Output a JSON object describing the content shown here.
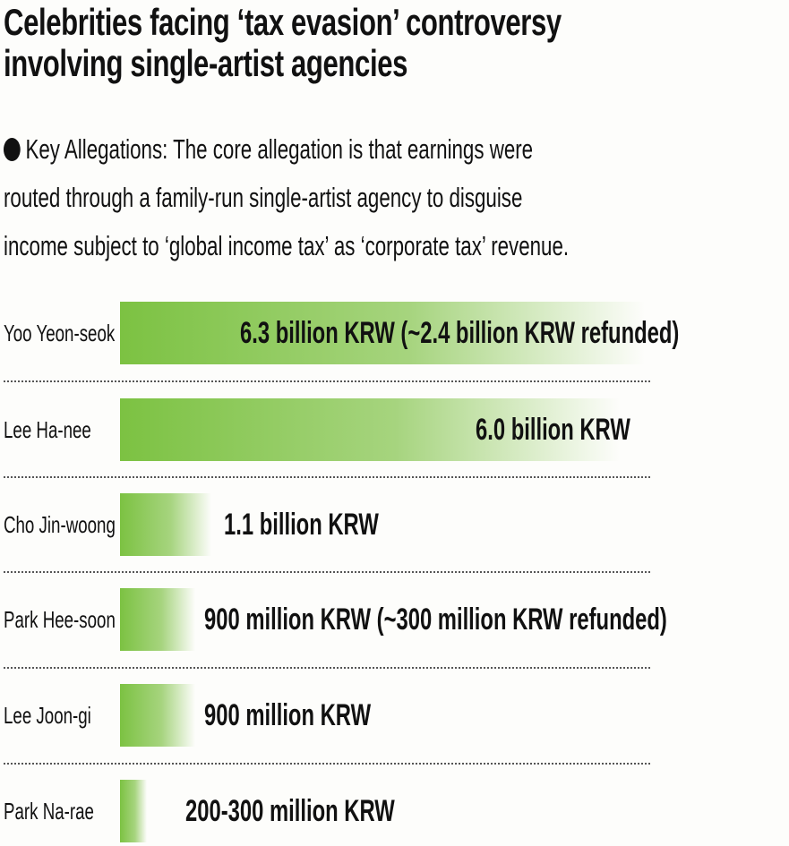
{
  "title_lines": [
    "Celebrities facing ‘tax evasion’ controversy",
    "involving single-artist agencies"
  ],
  "description_lines": [
    "Key Allegations: The core allegation is that earnings were",
    "routed through a family-run single-artist agency to disguise",
    "income subject to ‘global income tax’ as ‘corporate tax’ revenue."
  ],
  "bar_color": "#7cc242",
  "chart_data": {
    "type": "bar",
    "orientation": "horizontal",
    "unit": "billion KRW",
    "categories": [
      "Yoo Yeon-seok",
      "Lee Ha-nee",
      "Cho Jin-woong",
      "Park Hee-soon",
      "Lee Joon-gi",
      "Park Na-rae"
    ],
    "values": [
      6.3,
      6.0,
      1.1,
      0.9,
      0.9,
      0.25
    ],
    "data_labels": [
      "6.3 billion KRW (~2.4 billion KRW refunded)",
      "6.0 billion KRW",
      "1.1 billion KRW",
      "900 million KRW (~300 million KRW refunded)",
      "900 million KRW",
      "200-300 million KRW"
    ],
    "grid": false,
    "legend": "none"
  }
}
